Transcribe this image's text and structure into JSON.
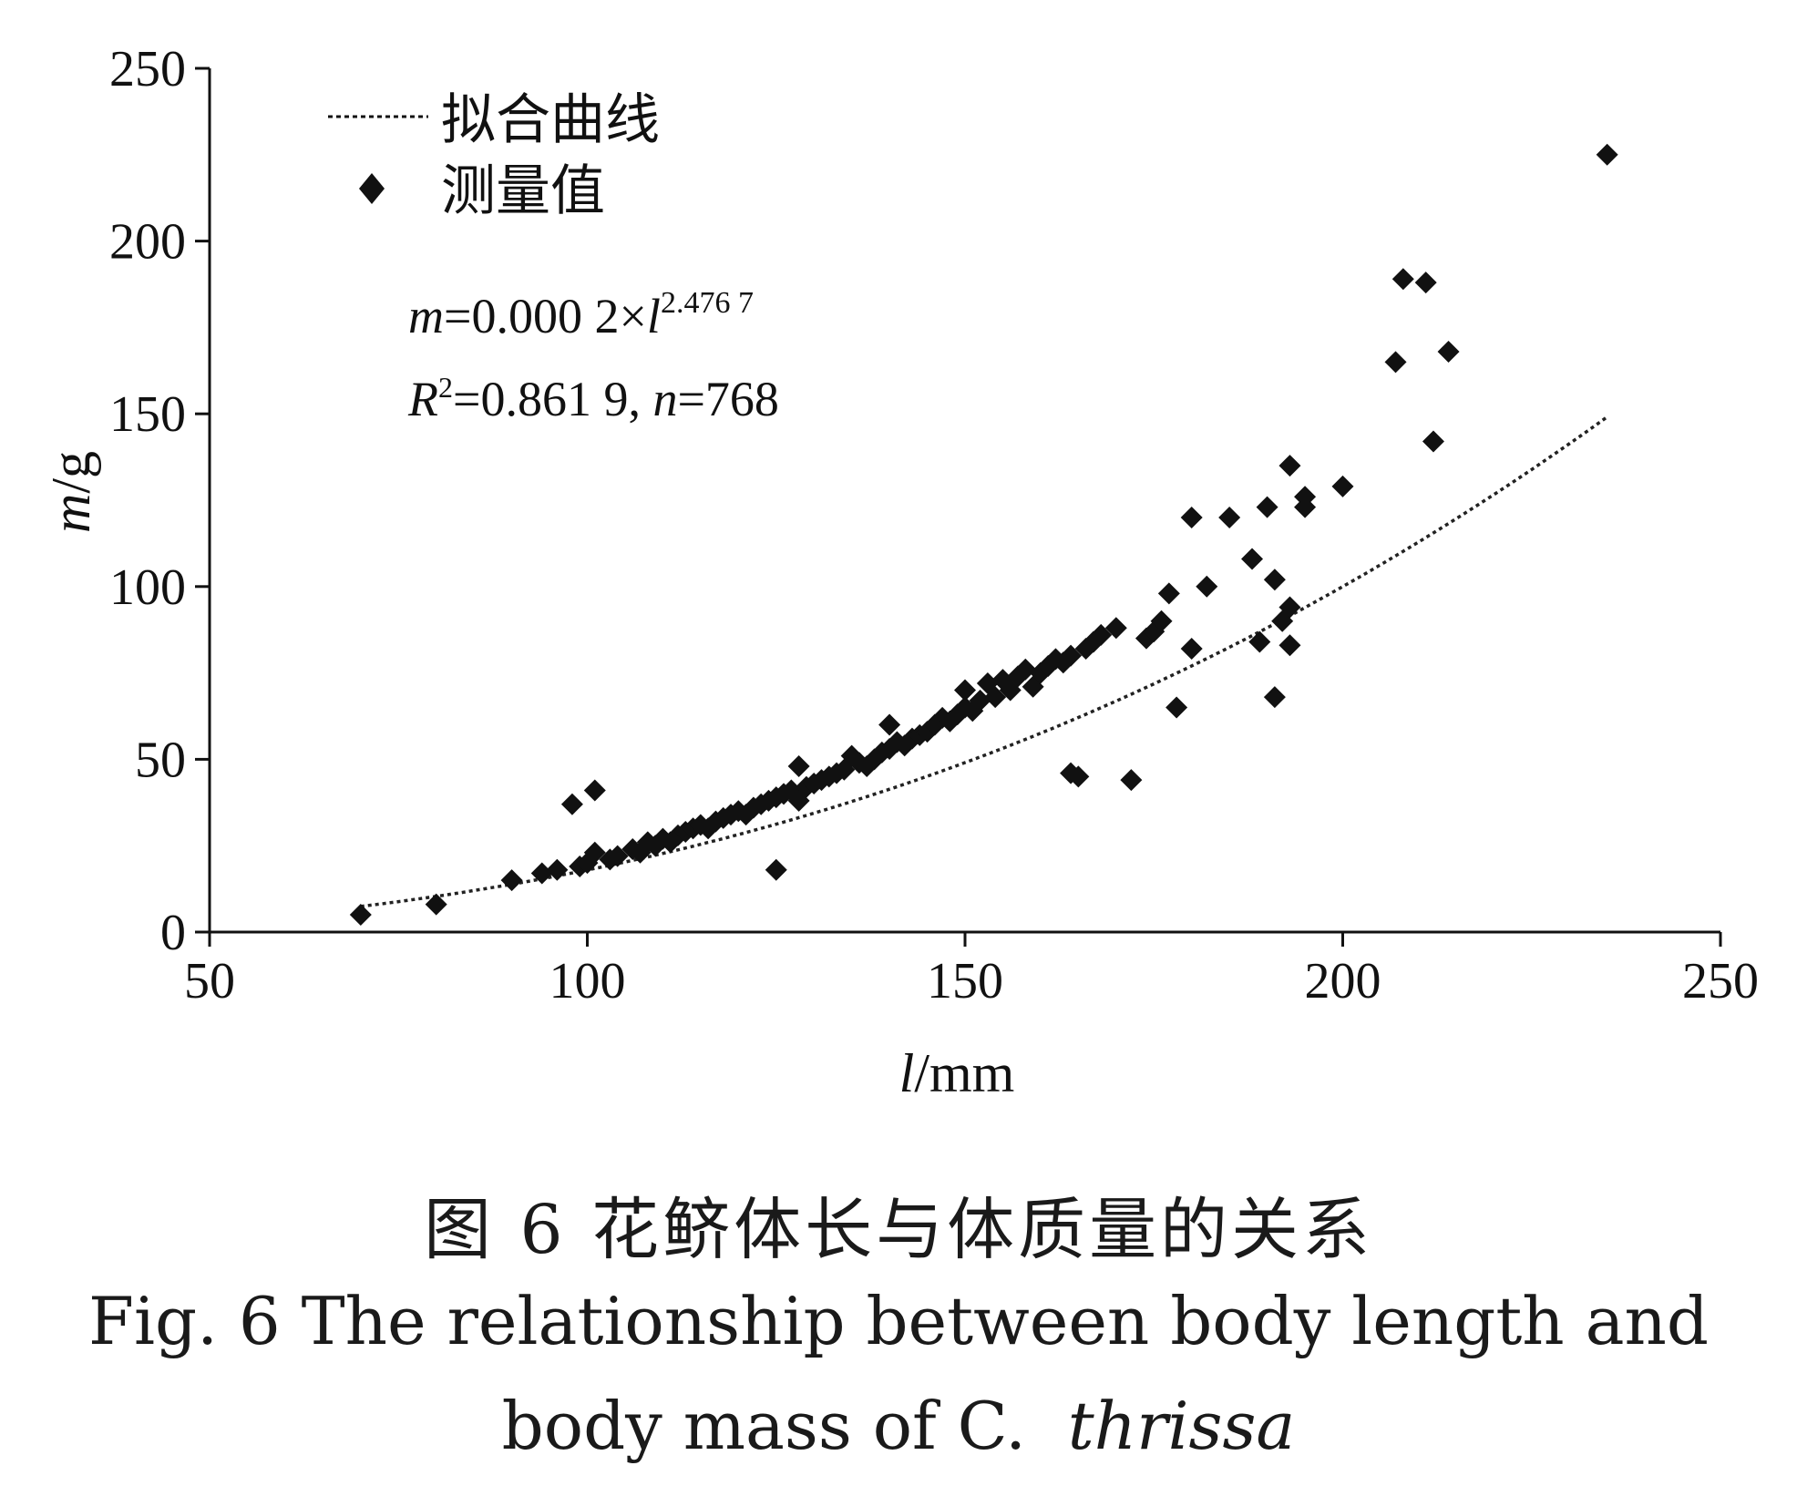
{
  "chart_data": {
    "type": "scatter",
    "xlabel_var": "l",
    "xlabel_unit": "/mm",
    "ylabel_var": "m",
    "ylabel_unit": "/g",
    "xlim": [
      50,
      250
    ],
    "ylim": [
      0,
      250
    ],
    "xticks": [
      "50",
      "100",
      "150",
      "200",
      "250"
    ],
    "yticks": [
      "0",
      "50",
      "100",
      "150",
      "200",
      "250"
    ],
    "legend_position": "top-left",
    "series": [
      {
        "name": "拟合曲线",
        "kind": "line",
        "style": "dotted",
        "equation": {
          "a": 0.0002,
          "b": 2.4767
        },
        "x_range": [
          70,
          235
        ]
      },
      {
        "name": "测量值",
        "kind": "scatter",
        "marker": "diamond",
        "x": [
          70,
          80,
          90,
          94,
          96,
          98,
          99,
          100,
          101,
          101,
          103,
          104,
          106,
          107,
          108,
          109,
          110,
          111,
          112,
          113,
          114,
          115,
          116,
          117,
          118,
          119,
          120,
          121,
          122,
          123,
          124,
          125,
          125,
          126,
          127,
          128,
          128,
          129,
          130,
          131,
          132,
          133,
          134,
          135,
          136,
          137,
          138,
          139,
          140,
          140,
          141,
          142,
          143,
          144,
          145,
          146,
          147,
          148,
          149,
          150,
          150,
          151,
          152,
          153,
          154,
          155,
          156,
          157,
          158,
          159,
          160,
          161,
          162,
          163,
          164,
          164,
          165,
          166,
          167,
          168,
          170,
          172,
          174,
          175,
          176,
          177,
          178,
          180,
          180,
          182,
          185,
          188,
          189,
          190,
          191,
          191,
          192,
          193,
          193,
          193,
          195,
          195,
          200,
          207,
          208,
          211,
          212,
          214,
          235
        ],
        "y": [
          5,
          8,
          15,
          17,
          18,
          37,
          19,
          20,
          41,
          23,
          21,
          22,
          24,
          23,
          26,
          25,
          27,
          26,
          28,
          29,
          30,
          31,
          30,
          32,
          33,
          34,
          35,
          34,
          36,
          37,
          38,
          18,
          39,
          40,
          41,
          48,
          38,
          42,
          43,
          44,
          45,
          46,
          47,
          51,
          49,
          48,
          50,
          52,
          53,
          60,
          55,
          54,
          56,
          57,
          58,
          60,
          62,
          61,
          63,
          65,
          70,
          64,
          67,
          72,
          68,
          73,
          70,
          74,
          76,
          71,
          75,
          77,
          79,
          78,
          80,
          46,
          45,
          82,
          84,
          86,
          88,
          44,
          85,
          87,
          90,
          98,
          65,
          82,
          120,
          100,
          120,
          108,
          84,
          123,
          68,
          102,
          90,
          135,
          94,
          83,
          126,
          123,
          129,
          165,
          189,
          188,
          142,
          168,
          225
        ]
      }
    ],
    "annotation": {
      "line1": {
        "var": "m",
        "body": "=0.000 2×",
        "var2": "l",
        "exp": "2.476 7"
      },
      "line2": {
        "var": "R",
        "sup": "2",
        "body": "=0.861 9, ",
        "var2": "n",
        "tail": "=768"
      }
    }
  },
  "caption": {
    "cn": "图 6   花鲚体长与体质量的关系",
    "en_line1": "Fig. 6   The relationship between body length and",
    "en_line2_prefix": "body mass of C.",
    "en_line2_italic": "thrissa"
  }
}
